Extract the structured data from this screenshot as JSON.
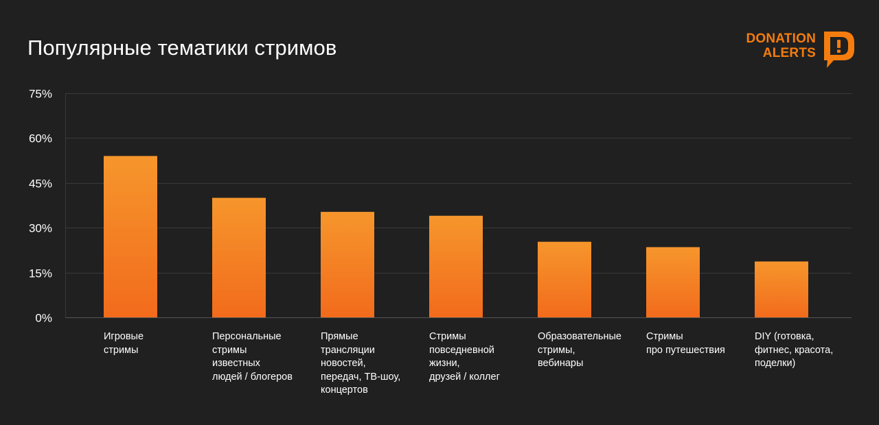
{
  "title": "Популярные тематики стримов",
  "logo": {
    "line1": "DONATION",
    "line2": "ALERTS",
    "color": "#f57d0f"
  },
  "colors": {
    "background": "#202020",
    "grid": "#3a3a3a",
    "bar_top": "#f6962c",
    "bar_bottom": "#f26b1c"
  },
  "chart_data": {
    "type": "bar",
    "categories": [
      "Игровые\nстримы",
      "Персональные\nстримы\nизвестных\nлюдей / блогеров",
      "Прямые\nтрансляции\nновостей,\nпередач, ТВ-шоу,\nконцертов",
      "Стримы\nповседневной\nжизни,\nдрузей / коллег",
      "Образовательные\nстримы,\nвебинары",
      "Стримы\nпро путешествия",
      "DIY (готовка,\nфитнес, красота,\nподелки)"
    ],
    "values": [
      54,
      40,
      35.3,
      34,
      25.3,
      23.5,
      18.7
    ],
    "ylim": [
      0,
      75
    ],
    "yticks": [
      0,
      15,
      30,
      45,
      60,
      75
    ],
    "ytick_labels": [
      "0%",
      "15%",
      "30%",
      "45%",
      "60%",
      "75%"
    ],
    "grid": true
  }
}
